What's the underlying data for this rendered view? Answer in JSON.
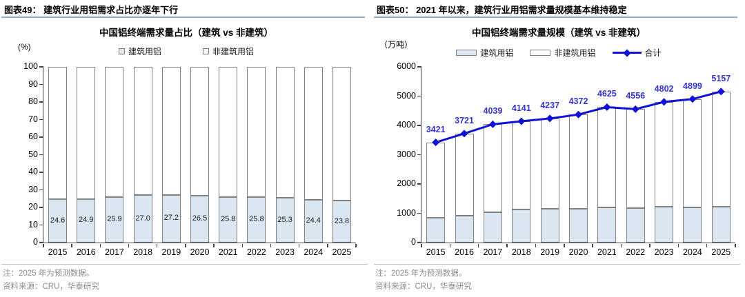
{
  "figures": [
    {
      "header": "图表49：  建筑行业用铝需求占比亦逐年下行",
      "note": "注：2025 年为预测数据。",
      "source": "资料来源：CRU，华泰研究"
    },
    {
      "header": "图表50：  2021 年以来，建筑行业用铝需求量规模基本维持稳定",
      "note": "注：2025 年为预测数据。",
      "source": "资料来源：CRU，华泰研究"
    }
  ],
  "colors": {
    "construction_fill": "#dbe6f3",
    "nonconstruction_fill": "#ffffff",
    "bar_border": "#808080",
    "total_line": "#0f10d8",
    "line_label": "#3535cd",
    "header_rule": "#8da6c6",
    "note_text": "#8c8c8c",
    "axis": "#404040"
  },
  "chart_data": [
    {
      "type": "bar",
      "stacked": true,
      "title": "中国铝终端需求量占比（建筑 vs 非建筑）",
      "unit": "(%)",
      "categories": [
        "2015",
        "2016",
        "2017",
        "2018",
        "2019",
        "2020",
        "2021",
        "2022",
        "2023",
        "2024",
        "2025"
      ],
      "series": [
        {
          "name": "建筑用铝",
          "values": [
            24.6,
            24.9,
            25.9,
            27.0,
            27.2,
            26.5,
            25.8,
            25.8,
            25.3,
            24.4,
            23.8
          ],
          "fill": "#dbe6f3",
          "labels_shown": true,
          "label_decimals": 1
        },
        {
          "name": "非建筑用铝",
          "values": [
            75.4,
            75.1,
            74.1,
            73.0,
            72.8,
            73.5,
            74.2,
            74.2,
            74.7,
            75.6,
            76.2
          ],
          "fill": "#ffffff",
          "labels_shown": false
        }
      ],
      "ylim": [
        0,
        100
      ],
      "ytick_step": 10,
      "grid": false,
      "legend_position": "top"
    },
    {
      "type": "bar+line",
      "stacked": true,
      "title": "中国铝终端需求量规模（建筑 vs 非建筑）",
      "unit": "（万吨）",
      "categories": [
        "2015",
        "2016",
        "2017",
        "2018",
        "2019",
        "2020",
        "2021",
        "2022",
        "2023",
        "2024",
        "2025"
      ],
      "series": [
        {
          "name": "建筑用铝",
          "values": [
            842,
            927,
            1046,
            1118,
            1152,
            1159,
            1193,
            1175,
            1215,
            1195,
            1227
          ],
          "fill": "#dbe6f3",
          "labels_shown": false
        },
        {
          "name": "非建筑用铝",
          "values": [
            2579,
            2794,
            2993,
            3023,
            3085,
            3213,
            3432,
            3381,
            3587,
            3704,
            3930
          ],
          "fill": "#ffffff",
          "labels_shown": false
        }
      ],
      "line": {
        "name": "合计",
        "values": [
          3421,
          3721,
          4039,
          4141,
          4237,
          4372,
          4625,
          4556,
          4802,
          4899,
          5157
        ],
        "color": "#0f10d8",
        "label_color": "#3535cd",
        "marker": "diamond",
        "labels_shown": true
      },
      "ylim": [
        0,
        6000
      ],
      "ytick_step": 1000,
      "grid": false,
      "legend_position": "top"
    }
  ]
}
